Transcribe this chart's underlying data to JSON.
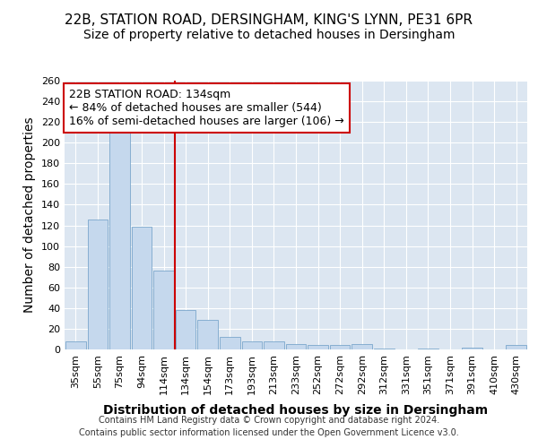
{
  "title_line1": "22B, STATION ROAD, DERSINGHAM, KING'S LYNN, PE31 6PR",
  "title_line2": "Size of property relative to detached houses in Dersingham",
  "xlabel": "Distribution of detached houses by size in Dersingham",
  "ylabel": "Number of detached properties",
  "categories": [
    "35sqm",
    "55sqm",
    "75sqm",
    "94sqm",
    "114sqm",
    "134sqm",
    "154sqm",
    "173sqm",
    "193sqm",
    "213sqm",
    "233sqm",
    "252sqm",
    "272sqm",
    "292sqm",
    "312sqm",
    "331sqm",
    "351sqm",
    "371sqm",
    "391sqm",
    "410sqm",
    "430sqm"
  ],
  "values": [
    8,
    126,
    217,
    119,
    76,
    38,
    29,
    12,
    8,
    8,
    5,
    4,
    4,
    5,
    1,
    0,
    1,
    0,
    2,
    0,
    4
  ],
  "highlight_index": 5,
  "highlight_color": "#cc0000",
  "bar_color": "#c5d8ed",
  "bar_edge_color": "#7ba7cc",
  "background_color": "#dce6f1",
  "annotation_line1": "22B STATION ROAD: 134sqm",
  "annotation_line2": "← 84% of detached houses are smaller (544)",
  "annotation_line3": "16% of semi-detached houses are larger (106) →",
  "annotation_box_color": "#ffffff",
  "annotation_box_edge": "#cc0000",
  "ylim": [
    0,
    260
  ],
  "yticks": [
    0,
    20,
    40,
    60,
    80,
    100,
    120,
    140,
    160,
    180,
    200,
    220,
    240,
    260
  ],
  "footer_line1": "Contains HM Land Registry data © Crown copyright and database right 2024.",
  "footer_line2": "Contains public sector information licensed under the Open Government Licence v3.0.",
  "grid_color": "#ffffff",
  "title_fontsize": 11,
  "subtitle_fontsize": 10,
  "axis_label_fontsize": 10,
  "tick_fontsize": 8,
  "annotation_fontsize": 9,
  "footer_fontsize": 7
}
